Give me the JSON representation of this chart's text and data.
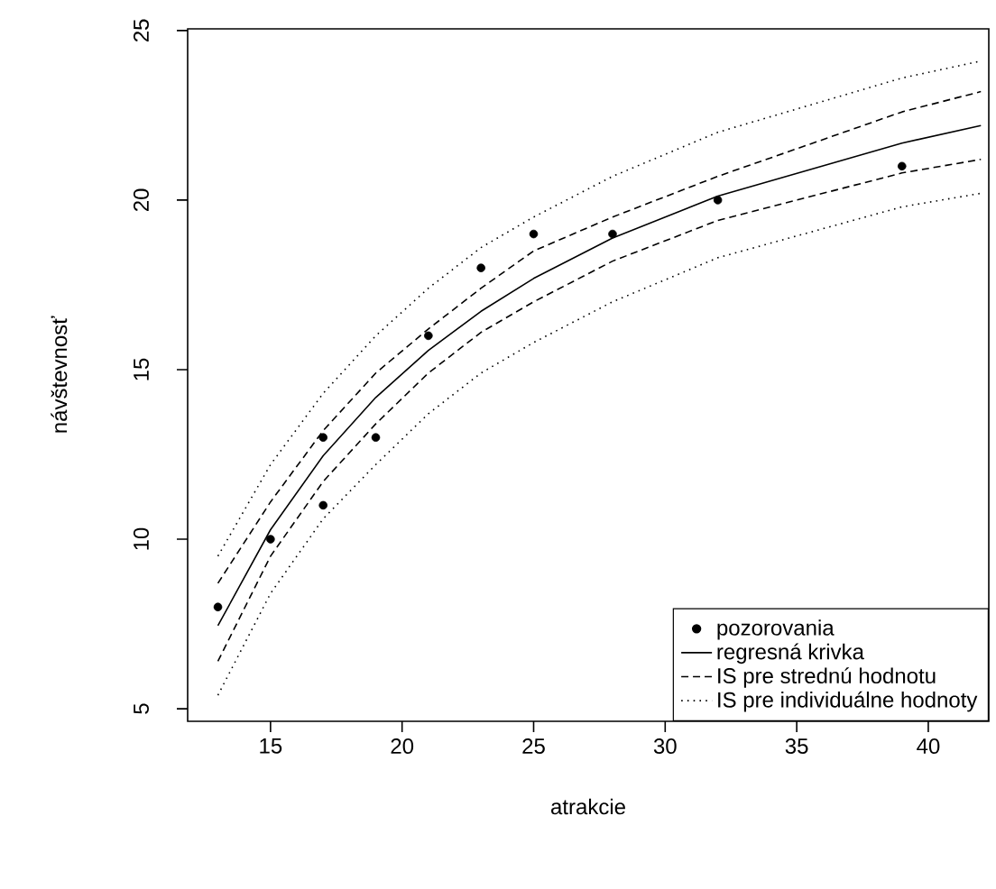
{
  "chart_data": {
    "type": "scatter",
    "xlabel": "atrakcie",
    "ylabel": "návštevnosť",
    "xlim": [
      11.85,
      42.3
    ],
    "ylim": [
      4.63,
      25.05
    ],
    "xticks": [
      15,
      20,
      25,
      30,
      35,
      40
    ],
    "yticks": [
      5,
      10,
      15,
      20,
      25
    ],
    "grid": false,
    "legend": "bottom right",
    "series": [
      {
        "name": "pozorovania",
        "type": "scatter",
        "color": "#000000",
        "x": [
          13,
          15,
          17,
          17,
          19,
          21,
          23,
          25,
          28,
          32,
          39
        ],
        "values": [
          8,
          10,
          13,
          11,
          13,
          16,
          18,
          19,
          19,
          20,
          21
        ]
      },
      {
        "name": "regresná krivka",
        "type": "line",
        "line_style": "solid",
        "color": "#000000",
        "x": [
          13,
          15,
          17,
          19,
          21,
          23,
          25,
          28,
          32,
          39,
          42
        ],
        "values": [
          7.45,
          10.28,
          12.46,
          14.18,
          15.57,
          16.72,
          17.69,
          18.88,
          20.12,
          21.68,
          22.2
        ]
      },
      {
        "name": "IS pre strednú hodnotu",
        "type": "line",
        "line_style": "dashed",
        "color": "#000000",
        "x": [
          13,
          15,
          17,
          19,
          21,
          23,
          25,
          28,
          32,
          39,
          42
        ],
        "values": [
          8.7,
          11.1,
          13.2,
          14.9,
          16.2,
          17.4,
          18.5,
          19.5,
          20.7,
          22.6,
          23.2
        ]
      },
      {
        "type": "line",
        "line_style": "dashed",
        "color": "#000000",
        "x": [
          13,
          15,
          17,
          19,
          21,
          23,
          25,
          28,
          32,
          39,
          42
        ],
        "values": [
          6.4,
          9.5,
          11.7,
          13.4,
          14.9,
          16.1,
          17.0,
          18.2,
          19.4,
          20.8,
          21.2
        ]
      },
      {
        "name": "IS pre individuálne hodnoty",
        "type": "line",
        "line_style": "dotted",
        "color": "#000000",
        "x": [
          13,
          15,
          17,
          19,
          21,
          23,
          25,
          28,
          32,
          39,
          42
        ],
        "values": [
          9.5,
          12.2,
          14.3,
          16.0,
          17.4,
          18.6,
          19.5,
          20.7,
          22.0,
          23.6,
          24.1
        ]
      },
      {
        "type": "line",
        "line_style": "dotted",
        "color": "#000000",
        "x": [
          13,
          15,
          17,
          19,
          21,
          23,
          25,
          28,
          32,
          39,
          42
        ],
        "values": [
          5.4,
          8.4,
          10.6,
          12.2,
          13.7,
          14.9,
          15.8,
          17.0,
          18.3,
          19.8,
          20.2
        ]
      }
    ]
  }
}
